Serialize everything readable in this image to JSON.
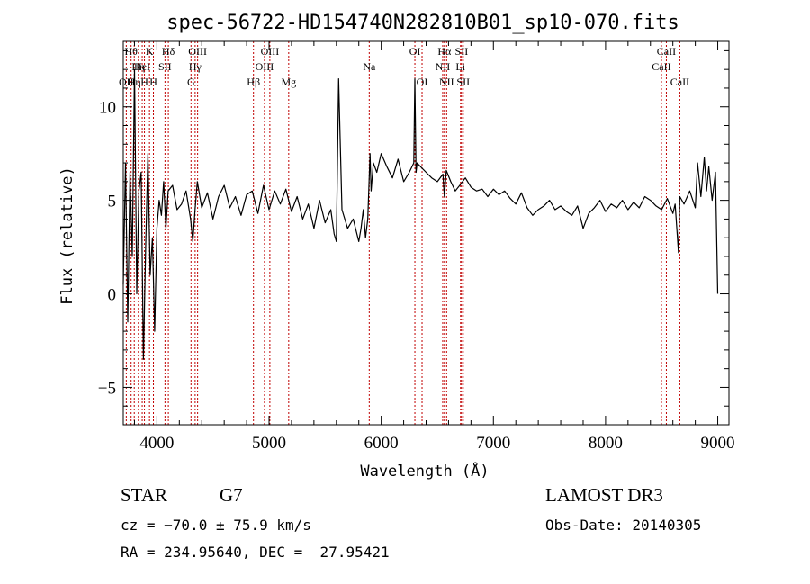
{
  "chart_data": {
    "type": "line",
    "title": "spec-56722-HD154740N282810B01_sp10-070.fits",
    "xlabel": "Wavelength (Å)",
    "ylabel": "Flux (relative)",
    "xlim": [
      3700,
      9100
    ],
    "ylim": [
      -7,
      13.5
    ],
    "x_ticks": [
      4000,
      5000,
      6000,
      7000,
      8000,
      9000
    ],
    "x_tick_labels": [
      "4000",
      "5000",
      "6000",
      "7000",
      "8000",
      "9000"
    ],
    "y_ticks": [
      -5,
      0,
      5,
      10
    ],
    "y_tick_labels": [
      "−5",
      "0",
      "5",
      "10"
    ],
    "grid": false,
    "line_color": "#000000",
    "marker_color": "#c00000",
    "series": [
      {
        "name": "flux",
        "x": [
          3700,
          3720,
          3740,
          3760,
          3780,
          3800,
          3820,
          3840,
          3860,
          3880,
          3900,
          3920,
          3940,
          3960,
          3980,
          4000,
          4020,
          4040,
          4060,
          4080,
          4100,
          4140,
          4180,
          4220,
          4260,
          4300,
          4320,
          4340,
          4360,
          4400,
          4450,
          4500,
          4550,
          4600,
          4650,
          4700,
          4750,
          4800,
          4850,
          4900,
          4950,
          5000,
          5050,
          5100,
          5150,
          5200,
          5250,
          5300,
          5350,
          5400,
          5450,
          5500,
          5550,
          5580,
          5600,
          5620,
          5650,
          5700,
          5750,
          5800,
          5820,
          5840,
          5860,
          5880,
          5900,
          5910,
          5930,
          5960,
          6000,
          6050,
          6100,
          6150,
          6200,
          6250,
          6290,
          6300,
          6310,
          6320,
          6350,
          6400,
          6450,
          6500,
          6550,
          6563,
          6580,
          6620,
          6660,
          6700,
          6750,
          6800,
          6850,
          6900,
          6950,
          7000,
          7050,
          7100,
          7150,
          7200,
          7250,
          7300,
          7350,
          7400,
          7450,
          7500,
          7550,
          7600,
          7650,
          7700,
          7750,
          7800,
          7850,
          7900,
          7950,
          8000,
          8050,
          8100,
          8150,
          8200,
          8250,
          8300,
          8350,
          8400,
          8450,
          8500,
          8550,
          8600,
          8620,
          8650,
          8662,
          8700,
          8750,
          8800,
          8820,
          8850,
          8880,
          8900,
          8920,
          8950,
          8980,
          9000
        ],
        "y": [
          0.5,
          7.0,
          -1.5,
          6.5,
          2.0,
          12.0,
          0.0,
          5.5,
          6.5,
          -3.5,
          2.5,
          7.5,
          1.0,
          3.0,
          -2.0,
          3.5,
          5.0,
          4.2,
          6.0,
          3.5,
          5.5,
          5.8,
          4.5,
          4.8,
          5.5,
          4.0,
          2.8,
          4.5,
          6.0,
          4.6,
          5.4,
          4.0,
          5.2,
          5.8,
          4.6,
          5.2,
          4.2,
          5.3,
          5.5,
          4.3,
          5.8,
          4.5,
          5.5,
          4.8,
          5.6,
          4.4,
          5.2,
          4.0,
          4.8,
          3.5,
          5.0,
          3.8,
          4.5,
          3.2,
          2.8,
          11.5,
          4.5,
          3.5,
          4.0,
          2.8,
          3.5,
          4.5,
          3.0,
          4.0,
          7.5,
          5.5,
          7.0,
          6.5,
          7.5,
          6.8,
          6.2,
          7.2,
          6.0,
          6.5,
          7.0,
          11.5,
          6.5,
          7.0,
          6.8,
          6.5,
          6.2,
          6.0,
          6.4,
          5.2,
          6.6,
          6.0,
          5.5,
          5.8,
          6.2,
          5.7,
          5.5,
          5.6,
          5.2,
          5.6,
          5.3,
          5.5,
          5.1,
          4.8,
          5.4,
          4.6,
          4.2,
          4.5,
          4.7,
          5.0,
          4.5,
          4.7,
          4.4,
          4.2,
          4.7,
          3.5,
          4.3,
          4.6,
          5.0,
          4.4,
          4.8,
          4.6,
          5.0,
          4.5,
          4.9,
          4.6,
          5.2,
          5.0,
          4.7,
          4.5,
          5.1,
          4.3,
          4.8,
          2.2,
          5.2,
          4.8,
          5.5,
          4.6,
          7.0,
          5.2,
          7.3,
          5.5,
          6.8,
          5.0,
          6.5,
          0.0
        ]
      }
    ],
    "line_markers": [
      {
        "wave": 3727,
        "label": "OII",
        "row": 3
      },
      {
        "wave": 3770,
        "label": "Hθ",
        "row": 1
      },
      {
        "wave": 3798,
        "label": "Hη",
        "row": 3
      },
      {
        "wave": 3835,
        "label": "Hη",
        "row": 2
      },
      {
        "wave": 3869,
        "label": "HeI",
        "row": 2
      },
      {
        "wave": 3889,
        "label": "H",
        "row": 3
      },
      {
        "wave": 3934,
        "label": "K",
        "row": 1
      },
      {
        "wave": 3969,
        "label": "H",
        "row": 3
      },
      {
        "wave": 4072,
        "label": "SII",
        "row": 2
      },
      {
        "wave": 4102,
        "label": "Hδ",
        "row": 1
      },
      {
        "wave": 4304,
        "label": "G",
        "row": 3
      },
      {
        "wave": 4341,
        "label": "Hγ",
        "row": 2
      },
      {
        "wave": 4363,
        "label": "OIII",
        "row": 1
      },
      {
        "wave": 4861,
        "label": "Hβ",
        "row": 3
      },
      {
        "wave": 4959,
        "label": "OIII",
        "row": 2
      },
      {
        "wave": 5007,
        "label": "OIII",
        "row": 1
      },
      {
        "wave": 5175,
        "label": "Mg",
        "row": 3
      },
      {
        "wave": 5893,
        "label": "Na",
        "row": 2
      },
      {
        "wave": 6300,
        "label": "OI",
        "row": 1
      },
      {
        "wave": 6364,
        "label": "OI",
        "row": 3
      },
      {
        "wave": 6548,
        "label": "NII",
        "row": 2
      },
      {
        "wave": 6563,
        "label": "Hα",
        "row": 1
      },
      {
        "wave": 6583,
        "label": "NII",
        "row": 3
      },
      {
        "wave": 6707,
        "label": "Li",
        "row": 2
      },
      {
        "wave": 6716,
        "label": "SII",
        "row": 1
      },
      {
        "wave": 6731,
        "label": "SII",
        "row": 3
      },
      {
        "wave": 8498,
        "label": "CaII",
        "row": 2
      },
      {
        "wave": 8542,
        "label": "CaII",
        "row": 1
      },
      {
        "wave": 8662,
        "label": "CaII",
        "row": 3
      }
    ]
  },
  "info": {
    "object_class": "STAR",
    "subclass": "G7",
    "survey": "LAMOST DR3",
    "redshift": "cz = −70.0 ± 75.9 km/s",
    "obs_date": "Obs-Date: 20140305",
    "coords": "RA = 234.95640, DEC =  27.95421"
  }
}
